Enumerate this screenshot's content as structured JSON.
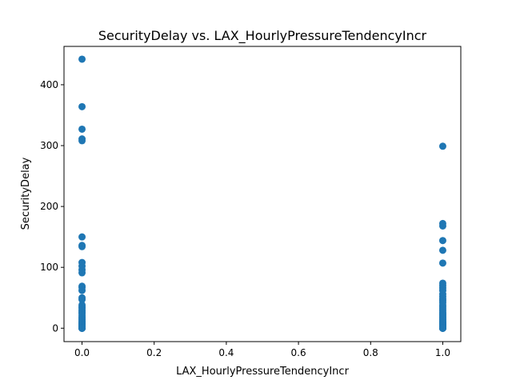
{
  "chart_data": {
    "type": "scatter",
    "title": "SecurityDelay vs. LAX_HourlyPressureTendencyIncr",
    "xlabel": "LAX_HourlyPressureTendencyIncr",
    "ylabel": "SecurityDelay",
    "xlim": [
      -0.05,
      1.05
    ],
    "ylim": [
      -22,
      463
    ],
    "xticks": [
      0.0,
      0.2,
      0.4,
      0.6,
      0.8,
      1.0
    ],
    "xtick_labels": [
      "0.0",
      "0.2",
      "0.4",
      "0.6",
      "0.8",
      "1.0"
    ],
    "yticks": [
      0,
      100,
      200,
      300,
      400
    ],
    "ytick_labels": [
      "0",
      "100",
      "200",
      "300",
      "400"
    ],
    "grid": false,
    "marker_color": "#1f77b4",
    "series": [
      {
        "x": [
          0,
          0,
          0,
          0,
          0,
          0,
          0,
          0,
          0,
          0,
          0,
          0,
          0,
          0,
          0,
          0,
          0,
          0,
          0,
          0,
          0,
          0,
          0,
          0,
          0,
          0,
          0,
          0,
          0,
          0,
          0,
          0,
          0,
          0,
          0,
          0,
          0,
          0,
          0,
          0,
          0,
          0,
          0,
          0,
          0,
          1,
          1,
          1,
          1,
          1,
          1,
          1,
          1,
          1,
          1,
          1,
          1,
          1,
          1,
          1,
          1,
          1,
          1,
          1,
          1,
          1,
          1,
          1,
          1,
          1,
          1,
          1,
          1,
          1,
          1,
          1,
          1,
          1,
          1,
          1,
          1,
          1,
          1,
          1,
          1,
          1,
          1,
          1
        ],
        "y": [
          442,
          364,
          327,
          311,
          308,
          150,
          136,
          134,
          108,
          102,
          96,
          91,
          69,
          67,
          62,
          50,
          47,
          38,
          35,
          33,
          30,
          28,
          26,
          24,
          21,
          18,
          16,
          14,
          12,
          10,
          9,
          8,
          7,
          6,
          5,
          4,
          3,
          2,
          1,
          0,
          0,
          0,
          0,
          0,
          0,
          299,
          172,
          168,
          144,
          128,
          107,
          74,
          70,
          66,
          62,
          56,
          52,
          48,
          45,
          42,
          38,
          35,
          32,
          29,
          26,
          24,
          22,
          20,
          18,
          16,
          14,
          12,
          10,
          9,
          8,
          7,
          6,
          5,
          4,
          3,
          2,
          1,
          0,
          0,
          0,
          0,
          0,
          0
        ]
      }
    ]
  }
}
